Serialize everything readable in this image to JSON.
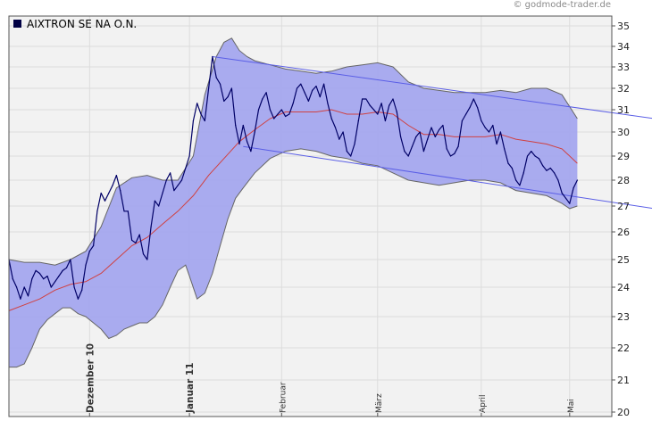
{
  "credit": "© godmode-trader.de",
  "chart_data": {
    "type": "line",
    "title": "AIXTRON SE NA O.N.",
    "legend": [
      {
        "name": "AIXTRON SE NA O.N.",
        "color": "#000044"
      }
    ],
    "ylim": [
      20,
      35
    ],
    "yticks": [
      20,
      21,
      22,
      23,
      24,
      25,
      26,
      27,
      28,
      29,
      30,
      31,
      32,
      33,
      34,
      35
    ],
    "x_count": 150,
    "x_labels": [
      {
        "label": "Dezember 10",
        "index": 21,
        "bold": true
      },
      {
        "label": "Januar 11",
        "index": 47,
        "bold": true
      },
      {
        "label": "Februar",
        "index": 71,
        "bold": false
      },
      {
        "label": "März",
        "index": 96,
        "bold": false
      },
      {
        "label": "April",
        "index": 123,
        "bold": false
      },
      {
        "label": "Mai",
        "index": 146,
        "bold": false
      }
    ],
    "series": [
      {
        "name": "AIXTRON SE NA O.N.",
        "color": "#000066",
        "points": [
          [
            0,
            25.0
          ],
          [
            1,
            24.3
          ],
          [
            2,
            24.0
          ],
          [
            3,
            23.6
          ],
          [
            4,
            24.0
          ],
          [
            5,
            23.7
          ],
          [
            6,
            24.3
          ],
          [
            7,
            24.6
          ],
          [
            8,
            24.5
          ],
          [
            9,
            24.3
          ],
          [
            10,
            24.4
          ],
          [
            11,
            24.0
          ],
          [
            12,
            24.2
          ],
          [
            13,
            24.4
          ],
          [
            14,
            24.6
          ],
          [
            15,
            24.7
          ],
          [
            16,
            25.0
          ],
          [
            17,
            24.0
          ],
          [
            18,
            23.6
          ],
          [
            19,
            23.9
          ],
          [
            20,
            24.8
          ],
          [
            21,
            25.3
          ],
          [
            22,
            25.5
          ],
          [
            23,
            26.8
          ],
          [
            24,
            27.5
          ],
          [
            25,
            27.2
          ],
          [
            26,
            27.5
          ],
          [
            27,
            27.8
          ],
          [
            28,
            28.2
          ],
          [
            29,
            27.6
          ],
          [
            30,
            26.8
          ],
          [
            31,
            26.8
          ],
          [
            32,
            25.7
          ],
          [
            33,
            25.6
          ],
          [
            34,
            25.9
          ],
          [
            35,
            25.2
          ],
          [
            36,
            25.0
          ],
          [
            37,
            26.2
          ],
          [
            38,
            27.2
          ],
          [
            39,
            27.0
          ],
          [
            40,
            27.5
          ],
          [
            41,
            28.0
          ],
          [
            42,
            28.3
          ],
          [
            43,
            27.6
          ],
          [
            44,
            27.8
          ],
          [
            45,
            28.0
          ],
          [
            46,
            28.5
          ],
          [
            47,
            29.0
          ],
          [
            48,
            30.5
          ],
          [
            49,
            31.3
          ],
          [
            50,
            30.8
          ],
          [
            51,
            30.5
          ],
          [
            52,
            32.0
          ],
          [
            53,
            33.5
          ],
          [
            54,
            32.5
          ],
          [
            55,
            32.2
          ],
          [
            56,
            31.4
          ],
          [
            57,
            31.6
          ],
          [
            58,
            32.0
          ],
          [
            59,
            30.3
          ],
          [
            60,
            29.5
          ],
          [
            61,
            30.3
          ],
          [
            62,
            29.6
          ],
          [
            63,
            29.2
          ],
          [
            64,
            30.0
          ],
          [
            65,
            31.0
          ],
          [
            66,
            31.5
          ],
          [
            67,
            31.8
          ],
          [
            68,
            31.0
          ],
          [
            69,
            30.6
          ],
          [
            70,
            30.8
          ],
          [
            71,
            31.0
          ],
          [
            72,
            30.7
          ],
          [
            73,
            30.8
          ],
          [
            74,
            31.3
          ],
          [
            75,
            32.0
          ],
          [
            76,
            32.2
          ],
          [
            77,
            31.8
          ],
          [
            78,
            31.4
          ],
          [
            79,
            31.9
          ],
          [
            80,
            32.1
          ],
          [
            81,
            31.6
          ],
          [
            82,
            32.2
          ],
          [
            83,
            31.3
          ],
          [
            84,
            30.6
          ],
          [
            85,
            30.2
          ],
          [
            86,
            29.7
          ],
          [
            87,
            30.0
          ],
          [
            88,
            29.2
          ],
          [
            89,
            29.0
          ],
          [
            90,
            29.5
          ],
          [
            91,
            30.5
          ],
          [
            92,
            31.5
          ],
          [
            93,
            31.5
          ],
          [
            94,
            31.2
          ],
          [
            95,
            31.0
          ],
          [
            96,
            30.8
          ],
          [
            97,
            31.3
          ],
          [
            98,
            30.5
          ],
          [
            99,
            31.2
          ],
          [
            100,
            31.5
          ],
          [
            101,
            30.9
          ],
          [
            102,
            29.8
          ],
          [
            103,
            29.2
          ],
          [
            104,
            29.0
          ],
          [
            105,
            29.4
          ],
          [
            106,
            29.8
          ],
          [
            107,
            30.0
          ],
          [
            108,
            29.2
          ],
          [
            109,
            29.7
          ],
          [
            110,
            30.2
          ],
          [
            111,
            29.8
          ],
          [
            112,
            30.1
          ],
          [
            113,
            30.3
          ],
          [
            114,
            29.3
          ],
          [
            115,
            29.0
          ],
          [
            116,
            29.1
          ],
          [
            117,
            29.4
          ],
          [
            118,
            30.5
          ],
          [
            119,
            30.8
          ],
          [
            120,
            31.1
          ],
          [
            121,
            31.5
          ],
          [
            122,
            31.1
          ],
          [
            123,
            30.5
          ],
          [
            124,
            30.2
          ],
          [
            125,
            30.0
          ],
          [
            126,
            30.3
          ],
          [
            127,
            29.5
          ],
          [
            128,
            30.0
          ],
          [
            129,
            29.3
          ],
          [
            130,
            28.7
          ],
          [
            131,
            28.5
          ],
          [
            132,
            28.0
          ],
          [
            133,
            27.8
          ],
          [
            134,
            28.3
          ],
          [
            135,
            29.0
          ],
          [
            136,
            29.2
          ],
          [
            137,
            29.0
          ],
          [
            138,
            28.9
          ],
          [
            139,
            28.6
          ],
          [
            140,
            28.4
          ],
          [
            141,
            28.5
          ],
          [
            142,
            28.3
          ],
          [
            143,
            28.0
          ],
          [
            144,
            27.5
          ],
          [
            145,
            27.3
          ],
          [
            146,
            27.1
          ],
          [
            147,
            27.7
          ],
          [
            148,
            28.0
          ]
        ]
      },
      {
        "name": "Moving average",
        "color": "#d04040",
        "points": [
          [
            0,
            23.2
          ],
          [
            4,
            23.4
          ],
          [
            8,
            23.6
          ],
          [
            12,
            23.9
          ],
          [
            16,
            24.1
          ],
          [
            20,
            24.2
          ],
          [
            24,
            24.5
          ],
          [
            28,
            25.0
          ],
          [
            32,
            25.5
          ],
          [
            36,
            25.8
          ],
          [
            40,
            26.3
          ],
          [
            44,
            26.8
          ],
          [
            48,
            27.4
          ],
          [
            52,
            28.2
          ],
          [
            56,
            28.9
          ],
          [
            60,
            29.6
          ],
          [
            64,
            30.1
          ],
          [
            68,
            30.6
          ],
          [
            72,
            30.9
          ],
          [
            76,
            30.9
          ],
          [
            80,
            30.9
          ],
          [
            84,
            31.0
          ],
          [
            88,
            30.8
          ],
          [
            92,
            30.8
          ],
          [
            96,
            30.9
          ],
          [
            100,
            30.8
          ],
          [
            104,
            30.3
          ],
          [
            108,
            29.9
          ],
          [
            112,
            29.9
          ],
          [
            116,
            29.8
          ],
          [
            120,
            29.8
          ],
          [
            124,
            29.8
          ],
          [
            128,
            29.9
          ],
          [
            132,
            29.7
          ],
          [
            136,
            29.6
          ],
          [
            140,
            29.5
          ],
          [
            144,
            29.3
          ],
          [
            148,
            28.7
          ]
        ]
      },
      {
        "name": "Upper band",
        "color": "#666666",
        "points": [
          [
            0,
            25.0
          ],
          [
            4,
            24.9
          ],
          [
            8,
            24.9
          ],
          [
            12,
            24.8
          ],
          [
            16,
            25.0
          ],
          [
            20,
            25.3
          ],
          [
            24,
            26.2
          ],
          [
            28,
            27.7
          ],
          [
            32,
            28.1
          ],
          [
            36,
            28.2
          ],
          [
            40,
            28.0
          ],
          [
            44,
            28.0
          ],
          [
            48,
            29.0
          ],
          [
            51,
            31.7
          ],
          [
            54,
            33.5
          ],
          [
            56,
            34.2
          ],
          [
            58,
            34.4
          ],
          [
            60,
            33.8
          ],
          [
            62,
            33.5
          ],
          [
            64,
            33.3
          ],
          [
            68,
            33.1
          ],
          [
            72,
            32.9
          ],
          [
            76,
            32.8
          ],
          [
            80,
            32.7
          ],
          [
            84,
            32.8
          ],
          [
            88,
            33.0
          ],
          [
            92,
            33.1
          ],
          [
            96,
            33.2
          ],
          [
            100,
            33.0
          ],
          [
            104,
            32.3
          ],
          [
            108,
            32.0
          ],
          [
            112,
            31.9
          ],
          [
            116,
            31.8
          ],
          [
            120,
            31.8
          ],
          [
            124,
            31.8
          ],
          [
            128,
            31.9
          ],
          [
            132,
            31.8
          ],
          [
            136,
            32.0
          ],
          [
            140,
            32.0
          ],
          [
            144,
            31.7
          ],
          [
            148,
            30.6
          ]
        ]
      },
      {
        "name": "Lower band",
        "color": "#666666",
        "points": [
          [
            0,
            21.4
          ],
          [
            2,
            21.4
          ],
          [
            4,
            21.5
          ],
          [
            6,
            22.0
          ],
          [
            8,
            22.6
          ],
          [
            10,
            22.9
          ],
          [
            12,
            23.1
          ],
          [
            14,
            23.3
          ],
          [
            16,
            23.3
          ],
          [
            18,
            23.1
          ],
          [
            20,
            23.0
          ],
          [
            22,
            22.8
          ],
          [
            24,
            22.6
          ],
          [
            26,
            22.3
          ],
          [
            28,
            22.4
          ],
          [
            30,
            22.6
          ],
          [
            32,
            22.7
          ],
          [
            34,
            22.8
          ],
          [
            36,
            22.8
          ],
          [
            38,
            23.0
          ],
          [
            40,
            23.4
          ],
          [
            42,
            24.0
          ],
          [
            44,
            24.6
          ],
          [
            46,
            24.8
          ],
          [
            47,
            24.4
          ],
          [
            49,
            23.6
          ],
          [
            51,
            23.8
          ],
          [
            53,
            24.5
          ],
          [
            55,
            25.5
          ],
          [
            57,
            26.5
          ],
          [
            59,
            27.3
          ],
          [
            61,
            27.7
          ],
          [
            64,
            28.3
          ],
          [
            68,
            28.9
          ],
          [
            72,
            29.2
          ],
          [
            76,
            29.3
          ],
          [
            80,
            29.2
          ],
          [
            84,
            29.0
          ],
          [
            88,
            28.9
          ],
          [
            92,
            28.7
          ],
          [
            96,
            28.6
          ],
          [
            100,
            28.3
          ],
          [
            104,
            28.0
          ],
          [
            108,
            27.9
          ],
          [
            112,
            27.8
          ],
          [
            116,
            27.9
          ],
          [
            120,
            28.0
          ],
          [
            124,
            28.0
          ],
          [
            128,
            27.9
          ],
          [
            132,
            27.6
          ],
          [
            136,
            27.5
          ],
          [
            140,
            27.4
          ],
          [
            144,
            27.1
          ],
          [
            146,
            26.9
          ],
          [
            148,
            27.0
          ]
        ]
      }
    ],
    "trendlines": [
      {
        "name": "upper-channel",
        "from": [
          53,
          33.5
        ],
        "to": [
          168,
          30.6
        ]
      },
      {
        "name": "lower-channel",
        "from": [
          61,
          29.4
        ],
        "to": [
          168,
          26.9
        ]
      }
    ]
  }
}
